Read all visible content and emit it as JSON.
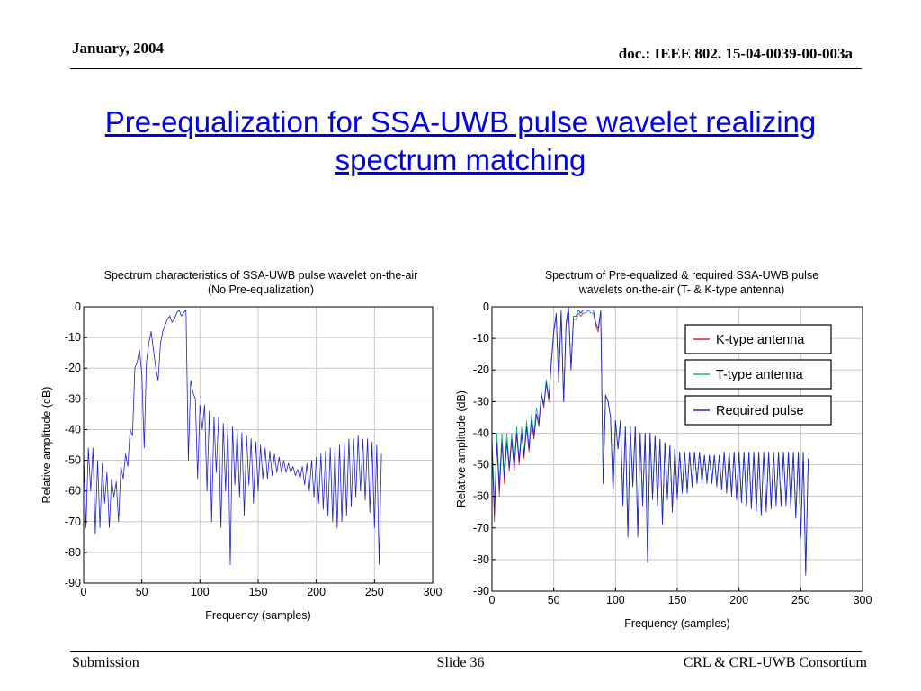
{
  "header": {
    "date": "January, 2004",
    "doc": "doc.: IEEE 802. 15-04-0039-00-003a"
  },
  "slide_title": {
    "line1": "Pre-equalization for SSA-UWB pulse wavelet realizing",
    "line2": "spectrum matching"
  },
  "footer": {
    "left": "Submission",
    "center": "Slide 36",
    "right": "CRL & CRL-UWB Consortium"
  },
  "colors": {
    "k_type": "#e02020",
    "t_type": "#20b090",
    "required": "#2020d0",
    "title_link": "#0000ee"
  },
  "chart_data": [
    {
      "type": "line",
      "title_line1": "Spectrum characteristics of SSA-UWB pulse wavelet on-the-air",
      "title_line2": "(No Pre-equalization)",
      "xlabel": "Frequency (samples)",
      "ylabel": "Relative amplitude (dB)",
      "xlim": [
        0,
        300
      ],
      "ylim": [
        -90,
        0
      ],
      "xticks": [
        "0",
        "50",
        "100",
        "150",
        "200",
        "250",
        "300"
      ],
      "yticks": [
        "0",
        "-10",
        "-20",
        "-30",
        "-40",
        "-50",
        "-60",
        "-70",
        "-80",
        "-90"
      ],
      "grid": true,
      "series": [
        {
          "color": "#2020d0",
          "x": [
            0,
            2,
            4,
            6,
            8,
            10,
            12,
            14,
            16,
            18,
            20,
            22,
            24,
            26,
            28,
            30,
            32,
            34,
            36,
            38,
            40,
            42,
            44,
            46,
            48,
            50,
            52,
            54,
            56,
            58,
            60,
            62,
            64,
            66,
            68,
            70,
            72,
            74,
            76,
            78,
            80,
            82,
            84,
            86,
            88,
            90,
            92,
            94,
            96,
            98,
            100,
            102,
            104,
            106,
            108,
            110,
            112,
            114,
            116,
            118,
            120,
            122,
            124,
            126,
            128,
            130,
            132,
            134,
            136,
            138,
            140,
            142,
            144,
            146,
            148,
            150,
            152,
            154,
            156,
            158,
            160,
            162,
            164,
            166,
            168,
            170,
            172,
            174,
            176,
            178,
            180,
            182,
            184,
            186,
            188,
            190,
            192,
            194,
            196,
            198,
            200,
            202,
            204,
            206,
            208,
            210,
            212,
            214,
            216,
            218,
            220,
            222,
            224,
            226,
            228,
            230,
            232,
            234,
            236,
            238,
            240,
            242,
            244,
            246,
            248,
            250,
            252,
            254,
            256
          ],
          "y": [
            -48,
            -72,
            -46,
            -60,
            -46,
            -74,
            -50,
            -72,
            -51,
            -64,
            -54,
            -72,
            -56,
            -62,
            -57,
            -70,
            -52,
            -56,
            -48,
            -52,
            -40,
            -42,
            -20,
            -18,
            -14,
            -22,
            -46,
            -18,
            -12,
            -8,
            -14,
            -20,
            -24,
            -12,
            -8,
            -6,
            -4,
            -3,
            -5,
            -4,
            -2,
            -1,
            -3,
            -2,
            -1,
            -50,
            -24,
            -28,
            -30,
            -56,
            -32,
            -40,
            -32,
            -60,
            -34,
            -70,
            -36,
            -54,
            -36,
            -72,
            -38,
            -60,
            -38,
            -84,
            -39,
            -58,
            -40,
            -62,
            -41,
            -68,
            -42,
            -58,
            -43,
            -64,
            -44,
            -60,
            -45,
            -56,
            -46,
            -56,
            -47,
            -55,
            -48,
            -54,
            -49,
            -54,
            -50,
            -54,
            -51,
            -54,
            -52,
            -55,
            -53,
            -56,
            -52,
            -58,
            -51,
            -60,
            -50,
            -62,
            -49,
            -64,
            -48,
            -66,
            -47,
            -68,
            -46,
            -70,
            -46,
            -72,
            -45,
            -70,
            -44,
            -68,
            -43,
            -65,
            -43,
            -62,
            -42,
            -60,
            -43,
            -63,
            -43,
            -67,
            -44,
            -72,
            -45,
            -84,
            -48
          ]
        }
      ]
    },
    {
      "type": "line",
      "title_line1": "Spectrum of Pre-equalized & required SSA-UWB pulse",
      "title_line2": "wavelets on-the-air  (T- & K-type antenna)",
      "xlabel": "Frequency (samples)",
      "ylabel": "Relative amplitude (dB)",
      "xlim": [
        0,
        300
      ],
      "ylim": [
        -90,
        0
      ],
      "xticks": [
        "0",
        "50",
        "100",
        "150",
        "200",
        "250",
        "300"
      ],
      "yticks": [
        "0",
        "-10",
        "-20",
        "-30",
        "-40",
        "-50",
        "-60",
        "-70",
        "-80",
        "-90"
      ],
      "grid": true,
      "legend": {
        "placement": "top-right",
        "entries": [
          "K-type antenna",
          "T-type antenna",
          "Required pulse"
        ]
      },
      "series": [
        {
          "name": "K-type antenna",
          "color": "#e02020",
          "x": [
            0,
            2,
            4,
            6,
            8,
            10,
            12,
            14,
            16,
            18,
            20,
            22,
            24,
            26,
            28,
            30,
            32,
            34,
            36,
            38,
            40,
            42,
            44,
            46,
            48,
            50,
            52,
            54,
            56,
            58,
            60,
            62,
            64,
            66,
            68,
            70,
            72,
            74,
            76,
            78,
            80,
            82,
            84,
            86,
            88,
            90,
            92,
            94,
            96,
            98,
            100,
            102,
            104,
            106,
            108,
            110,
            112,
            114,
            116,
            118,
            120,
            122,
            124,
            126,
            128,
            130,
            132,
            134,
            136,
            138,
            140,
            142,
            144,
            146,
            148,
            150,
            152,
            154,
            156,
            158,
            160,
            162,
            164,
            166,
            168,
            170,
            172,
            174,
            176,
            178,
            180,
            182,
            184,
            186,
            188,
            190,
            192,
            194,
            196,
            198,
            200,
            202,
            204,
            206,
            208,
            210,
            212,
            214,
            216,
            218,
            220,
            222,
            224,
            226,
            228,
            230,
            232,
            234,
            236,
            238,
            240,
            242,
            244,
            246,
            248,
            250,
            252,
            254,
            256
          ],
          "y": [
            -42,
            -68,
            -42,
            -60,
            -42,
            -56,
            -42,
            -52,
            -42,
            -52,
            -40,
            -50,
            -40,
            -48,
            -38,
            -46,
            -36,
            -42,
            -34,
            -38,
            -28,
            -32,
            -24,
            -30,
            -18,
            -8,
            -3,
            -24,
            -2,
            -30,
            -6,
            -1,
            -20,
            -4,
            -4,
            -2,
            -3,
            -2,
            -2,
            -1,
            -2,
            -2,
            -6,
            -8,
            -2,
            -55,
            -28,
            -30,
            -35,
            -58,
            -36,
            -45,
            -36,
            -62,
            -38,
            -72,
            -38,
            -56,
            -38,
            -72,
            -40,
            -62,
            -40,
            -80,
            -40,
            -60,
            -41,
            -62,
            -42,
            -68,
            -43,
            -60,
            -44,
            -64,
            -45,
            -60,
            -46,
            -58,
            -46,
            -58,
            -46,
            -56,
            -46,
            -55,
            -46,
            -55,
            -47,
            -55,
            -47,
            -55,
            -47,
            -56,
            -47,
            -57,
            -46,
            -58,
            -46,
            -59,
            -46,
            -60,
            -46,
            -61,
            -46,
            -62,
            -46,
            -63,
            -46,
            -64,
            -46,
            -65,
            -46,
            -64,
            -46,
            -63,
            -46,
            -62,
            -46,
            -62,
            -46,
            -62,
            -46,
            -63,
            -46,
            -66,
            -46,
            -72,
            -46,
            -84,
            -48
          ]
        },
        {
          "name": "T-type antenna",
          "color": "#20b090",
          "x": [
            0,
            2,
            4,
            6,
            8,
            10,
            12,
            14,
            16,
            18,
            20,
            22,
            24,
            26,
            28,
            30,
            32,
            34,
            36,
            38,
            40,
            42,
            44,
            46,
            48,
            50,
            52,
            54,
            56,
            58,
            60,
            62,
            64,
            66,
            68,
            70,
            72,
            74,
            76,
            78,
            80,
            82,
            84,
            86,
            88,
            90,
            92,
            94,
            96,
            98,
            100,
            102,
            104,
            106,
            108,
            110,
            112,
            114,
            116,
            118,
            120,
            122,
            124,
            126,
            128,
            130,
            132,
            134,
            136,
            138,
            140,
            142,
            144,
            146,
            148,
            150,
            152,
            154,
            156,
            158,
            160,
            162,
            164,
            166,
            168,
            170,
            172,
            174,
            176,
            178,
            180,
            182,
            184,
            186,
            188,
            190,
            192,
            194,
            196,
            198,
            200,
            202,
            204,
            206,
            208,
            210,
            212,
            214,
            216,
            218,
            220,
            222,
            224,
            226,
            228,
            230,
            232,
            234,
            236,
            238,
            240,
            242,
            244,
            246,
            248,
            250,
            252,
            254,
            256
          ],
          "y": [
            -40,
            -64,
            -40,
            -56,
            -40,
            -52,
            -40,
            -50,
            -40,
            -50,
            -38,
            -48,
            -38,
            -46,
            -36,
            -44,
            -34,
            -40,
            -32,
            -36,
            -27,
            -31,
            -23,
            -29,
            -17,
            -7,
            -3,
            -23,
            -2,
            -29,
            -5,
            -1,
            -19,
            -4,
            -4,
            -2,
            -2,
            -2,
            -2,
            -1,
            -2,
            -2,
            -5,
            -7,
            -2,
            -54,
            -28,
            -30,
            -35,
            -57,
            -36,
            -45,
            -36,
            -61,
            -38,
            -71,
            -38,
            -56,
            -38,
            -71,
            -40,
            -61,
            -40,
            -79,
            -40,
            -60,
            -41,
            -62,
            -42,
            -67,
            -43,
            -60,
            -44,
            -64,
            -45,
            -60,
            -46,
            -58,
            -46,
            -58,
            -46,
            -56,
            -46,
            -55,
            -46,
            -55,
            -47,
            -55,
            -47,
            -55,
            -47,
            -56,
            -47,
            -57,
            -46,
            -58,
            -46,
            -59,
            -46,
            -60,
            -46,
            -61,
            -46,
            -62,
            -46,
            -63,
            -46,
            -64,
            -46,
            -65,
            -46,
            -64,
            -46,
            -63,
            -46,
            -62,
            -46,
            -62,
            -46,
            -62,
            -46,
            -63,
            -46,
            -66,
            -46,
            -72,
            -46,
            -84,
            -48
          ]
        },
        {
          "name": "Required pulse",
          "color": "#2020d0",
          "x": [
            0,
            2,
            4,
            6,
            8,
            10,
            12,
            14,
            16,
            18,
            20,
            22,
            24,
            26,
            28,
            30,
            32,
            34,
            36,
            38,
            40,
            42,
            44,
            46,
            48,
            50,
            52,
            54,
            56,
            58,
            60,
            62,
            64,
            66,
            68,
            70,
            72,
            74,
            76,
            78,
            80,
            82,
            84,
            86,
            88,
            90,
            92,
            94,
            96,
            98,
            100,
            102,
            104,
            106,
            108,
            110,
            112,
            114,
            116,
            118,
            120,
            122,
            124,
            126,
            128,
            130,
            132,
            134,
            136,
            138,
            140,
            142,
            144,
            146,
            148,
            150,
            152,
            154,
            156,
            158,
            160,
            162,
            164,
            166,
            168,
            170,
            172,
            174,
            176,
            178,
            180,
            182,
            184,
            186,
            188,
            190,
            192,
            194,
            196,
            198,
            200,
            202,
            204,
            206,
            208,
            210,
            212,
            214,
            216,
            218,
            220,
            222,
            224,
            226,
            228,
            230,
            232,
            234,
            236,
            238,
            240,
            242,
            244,
            246,
            248,
            250,
            252,
            254,
            256
          ],
          "y": [
            -43,
            -66,
            -43,
            -58,
            -43,
            -54,
            -43,
            -51,
            -42,
            -51,
            -40,
            -49,
            -40,
            -47,
            -38,
            -45,
            -36,
            -41,
            -34,
            -37,
            -28,
            -31,
            -24,
            -29,
            -18,
            -8,
            -2,
            -24,
            -1,
            -30,
            -5,
            0,
            -20,
            -3,
            -3,
            -1,
            -2,
            -1,
            -1,
            -1,
            -1,
            -1,
            -5,
            -7,
            -1,
            -56,
            -28,
            -30,
            -35,
            -59,
            -36,
            -45,
            -36,
            -63,
            -38,
            -73,
            -38,
            -57,
            -38,
            -73,
            -40,
            -63,
            -40,
            -81,
            -40,
            -61,
            -41,
            -63,
            -42,
            -69,
            -43,
            -61,
            -44,
            -65,
            -45,
            -61,
            -46,
            -59,
            -46,
            -59,
            -46,
            -57,
            -46,
            -56,
            -46,
            -56,
            -47,
            -56,
            -47,
            -56,
            -47,
            -57,
            -47,
            -58,
            -46,
            -59,
            -46,
            -60,
            -46,
            -61,
            -46,
            -62,
            -46,
            -63,
            -46,
            -64,
            -46,
            -65,
            -46,
            -66,
            -46,
            -65,
            -46,
            -64,
            -46,
            -63,
            -46,
            -63,
            -46,
            -63,
            -46,
            -64,
            -46,
            -67,
            -46,
            -73,
            -46,
            -85,
            -48
          ]
        }
      ]
    }
  ]
}
